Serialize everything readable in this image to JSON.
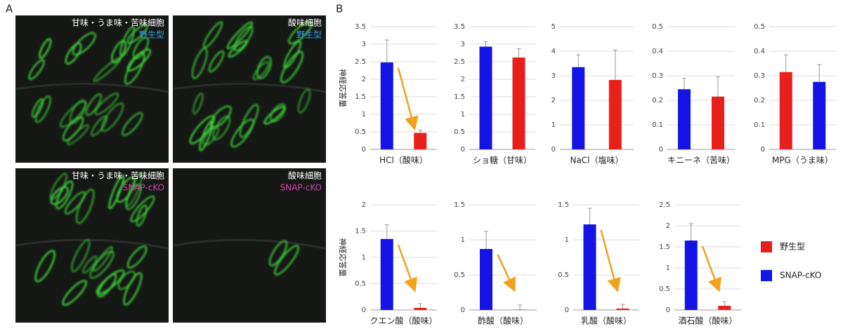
{
  "panel_labels": [
    "A",
    "B"
  ],
  "images": [
    {
      "title": "甘味・うま味・苦味細胞",
      "genotype": "野生型"
    },
    {
      "title": "酸味細胞",
      "genotype": "野生型"
    },
    {
      "title": "甘味・うま味・苦味細胞",
      "genotype": "SNAP-cKO"
    },
    {
      "title": "酸味細胞",
      "genotype": "SNAP-cKO"
    }
  ],
  "legend": [
    {
      "name": "野生型",
      "color": "#e8201c"
    },
    {
      "name": "SNAP-cKO",
      "color": "#1414e6"
    }
  ],
  "chart_data": [
    {
      "type": "bar",
      "ylabel": "神経応答量",
      "xlabel": "HCl（酸味）",
      "values": [
        2.48,
        0.47
      ],
      "errors": [
        0.64,
        0.08
      ],
      "colors": [
        "#1414e6",
        "#e8201c"
      ],
      "ylim": [
        0,
        3.5
      ],
      "yticks": [
        0,
        0.5,
        1,
        1.5,
        2,
        2.5,
        3,
        3.5
      ],
      "grid": true,
      "arrow": true
    },
    {
      "type": "bar",
      "xlabel": "ショ糖（甘味）",
      "values": [
        2.93,
        2.62
      ],
      "errors": [
        0.14,
        0.25
      ],
      "colors": [
        "#1414e6",
        "#e8201c"
      ],
      "ylim": [
        0,
        3.5
      ],
      "yticks": [
        0,
        0.5,
        1,
        1.5,
        2,
        2.5,
        3,
        3.5
      ],
      "grid": true,
      "arrow": false
    },
    {
      "type": "bar",
      "xlabel": "NaCl（塩味）",
      "values": [
        3.35,
        2.83
      ],
      "errors": [
        0.5,
        1.22
      ],
      "colors": [
        "#1414e6",
        "#e8201c"
      ],
      "ylim": [
        0,
        5
      ],
      "yticks": [
        0,
        1,
        2,
        3,
        4,
        5
      ],
      "grid": true,
      "arrow": false
    },
    {
      "type": "bar",
      "xlabel": "キニーネ（苦味）",
      "values": [
        0.245,
        0.215
      ],
      "errors": [
        0.045,
        0.08
      ],
      "colors": [
        "#1414e6",
        "#e8201c"
      ],
      "ylim": [
        0,
        0.5
      ],
      "yticks": [
        0,
        0.1,
        0.2,
        0.3,
        0.4,
        0.5
      ],
      "grid": true,
      "arrow": false
    },
    {
      "type": "bar",
      "xlabel": "MPG（うま味）",
      "values": [
        0.315,
        0.275
      ],
      "errors": [
        0.07,
        0.07
      ],
      "colors": [
        "#e8201c",
        "#1414e6"
      ],
      "ylim": [
        0,
        0.5
      ],
      "yticks": [
        0,
        0.1,
        0.2,
        0.3,
        0.4,
        0.5
      ],
      "grid": true,
      "arrow": false
    },
    {
      "type": "bar",
      "ylabel": "神経応答量",
      "xlabel": "クエン酸（酸味）",
      "values": [
        1.35,
        0.04
      ],
      "errors": [
        0.27,
        0.08
      ],
      "colors": [
        "#1414e6",
        "#e8201c"
      ],
      "ylim": [
        0,
        2
      ],
      "yticks": [
        0,
        0.5,
        1,
        1.5,
        2
      ],
      "grid": true,
      "arrow": true
    },
    {
      "type": "bar",
      "xlabel": "酢酸（酸味）",
      "values": [
        0.87,
        0.005
      ],
      "errors": [
        0.25,
        0.065
      ],
      "colors": [
        "#1414e6",
        "#e8201c"
      ],
      "ylim": [
        0,
        1.5
      ],
      "yticks": [
        0,
        0.5,
        1,
        1.5
      ],
      "grid": true,
      "arrow": true
    },
    {
      "type": "bar",
      "xlabel": "乳酸（酸味）",
      "values": [
        1.22,
        0.02
      ],
      "errors": [
        0.23,
        0.06
      ],
      "colors": [
        "#1414e6",
        "#e8201c"
      ],
      "ylim": [
        0,
        1.5
      ],
      "yticks": [
        0,
        0.5,
        1,
        1.5
      ],
      "grid": true,
      "arrow": true
    },
    {
      "type": "bar",
      "xlabel": "酒石酸（酸味）",
      "values": [
        1.65,
        0.1
      ],
      "errors": [
        0.4,
        0.1
      ],
      "colors": [
        "#1414e6",
        "#e8201c"
      ],
      "ylim": [
        0,
        2.5
      ],
      "yticks": [
        0,
        0.5,
        1,
        1.5,
        2,
        2.5
      ],
      "grid": true,
      "arrow": true
    }
  ]
}
